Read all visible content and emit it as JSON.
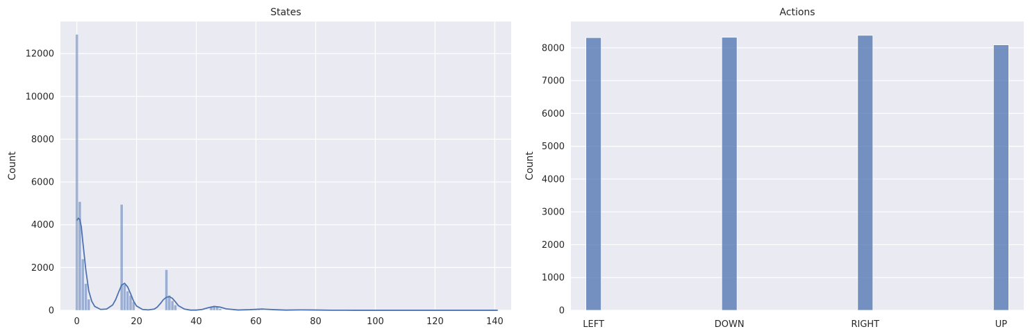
{
  "chart_data": [
    {
      "type": "bar",
      "title": "States",
      "xlabel": "",
      "ylabel": "Count",
      "xlim": [
        -5.5,
        145.5
      ],
      "ylim": [
        0,
        13500
      ],
      "xticks": [
        "0",
        "20",
        "40",
        "60",
        "80",
        "100",
        "120",
        "140"
      ],
      "yticks": [
        "0",
        "2000",
        "4000",
        "6000",
        "8000",
        "10000",
        "12000"
      ],
      "bin_width": 0.95,
      "bins": [
        {
          "x": 0,
          "count": 12900
        },
        {
          "x": 1,
          "count": 5080
        },
        {
          "x": 2,
          "count": 2400
        },
        {
          "x": 3,
          "count": 1250
        },
        {
          "x": 4,
          "count": 520
        },
        {
          "x": 15,
          "count": 4950
        },
        {
          "x": 16,
          "count": 1200
        },
        {
          "x": 17,
          "count": 900
        },
        {
          "x": 18,
          "count": 700
        },
        {
          "x": 19,
          "count": 400
        },
        {
          "x": 30,
          "count": 1900
        },
        {
          "x": 31,
          "count": 700
        },
        {
          "x": 32,
          "count": 450
        },
        {
          "x": 33,
          "count": 250
        },
        {
          "x": 45,
          "count": 150
        },
        {
          "x": 46,
          "count": 220
        },
        {
          "x": 47,
          "count": 180
        },
        {
          "x": 48,
          "count": 80
        },
        {
          "x": 60,
          "count": 30
        },
        {
          "x": 61,
          "count": 40
        },
        {
          "x": 62,
          "count": 25
        },
        {
          "x": 76,
          "count": 20
        },
        {
          "x": 78,
          "count": 15
        }
      ],
      "kde": {
        "x": [
          0,
          0.5,
          1,
          1.5,
          2,
          3,
          4,
          5,
          6,
          8,
          10,
          12,
          13,
          14,
          15,
          16,
          17,
          18,
          19,
          20,
          22,
          24,
          26,
          27,
          28,
          29,
          30,
          31,
          32,
          33,
          34,
          36,
          38,
          40,
          42,
          44,
          46,
          48,
          50,
          54,
          58,
          62,
          66,
          70,
          75,
          80,
          85,
          90,
          100,
          110,
          120,
          130,
          141
        ],
        "y": [
          4200,
          4300,
          4250,
          3900,
          3200,
          1900,
          900,
          420,
          180,
          40,
          60,
          250,
          500,
          850,
          1180,
          1260,
          1100,
          780,
          430,
          200,
          40,
          20,
          60,
          160,
          320,
          500,
          610,
          640,
          560,
          400,
          220,
          60,
          10,
          10,
          40,
          120,
          180,
          150,
          70,
          15,
          30,
          60,
          30,
          10,
          20,
          15,
          5,
          3,
          2,
          2,
          2,
          2,
          2
        ]
      },
      "colors": {
        "bar": "#4c72b0",
        "kde": "#4c72b0"
      }
    },
    {
      "type": "bar",
      "title": "Actions",
      "xlabel": "",
      "ylabel": "Count",
      "categories": [
        "LEFT",
        "DOWN",
        "RIGHT",
        "UP"
      ],
      "values": [
        8310,
        8320,
        8380,
        8090
      ],
      "ylim": [
        0,
        8800
      ],
      "yticks": [
        "0",
        "1000",
        "2000",
        "3000",
        "4000",
        "5000",
        "6000",
        "7000",
        "8000"
      ],
      "colors": {
        "bar": "#4c72b0"
      }
    }
  ]
}
